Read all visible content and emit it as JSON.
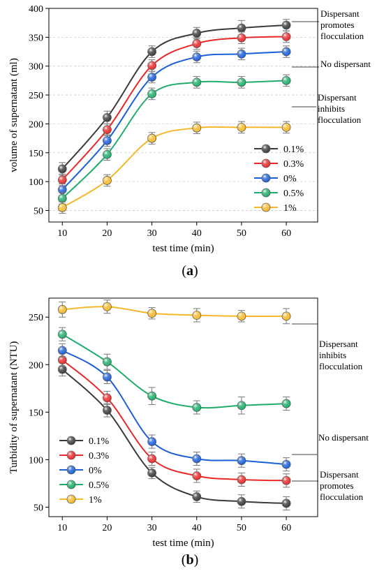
{
  "chart_data": [
    {
      "type": "line",
      "panel_label": "(a)",
      "xlabel": "test time (min)",
      "ylabel": "volume of supernatant (ml)",
      "x": [
        10,
        20,
        30,
        40,
        50,
        60
      ],
      "xlim": [
        7,
        67
      ],
      "ylim": [
        30,
        400
      ],
      "xticks": [
        10,
        20,
        30,
        40,
        50,
        60
      ],
      "yticks": [
        50,
        100,
        150,
        200,
        250,
        300,
        350,
        400
      ],
      "grid": "dashed horizontal",
      "legend_position": "lower-right",
      "series": [
        {
          "name": "0.1%",
          "color": "#3a3a3a",
          "values": [
            122,
            211,
            325,
            357,
            366,
            371
          ],
          "errors": [
            11,
            11,
            10,
            10,
            13,
            10
          ]
        },
        {
          "name": "0.3%",
          "color": "#e8292a",
          "values": [
            103,
            190,
            301,
            339,
            349,
            351
          ],
          "errors": [
            10,
            10,
            10,
            10,
            10,
            10
          ]
        },
        {
          "name": "0%",
          "color": "#1c5fd6",
          "values": [
            86,
            171,
            281,
            316,
            321,
            325
          ],
          "errors": [
            10,
            10,
            10,
            10,
            10,
            10
          ]
        },
        {
          "name": "0.5%",
          "color": "#1fad6b",
          "values": [
            71,
            147,
            252,
            272,
            272,
            275
          ],
          "errors": [
            10,
            10,
            10,
            10,
            10,
            10
          ]
        },
        {
          "name": "1%",
          "color": "#f5b82a",
          "values": [
            55,
            102,
            175,
            193,
            194,
            194
          ],
          "errors": [
            10,
            10,
            10,
            10,
            10,
            10
          ]
        }
      ],
      "annotations": [
        {
          "lines": [
            "Dispersant",
            "promotes",
            "flocculation"
          ]
        },
        {
          "lines": [
            "No dispersant"
          ]
        },
        {
          "lines": [
            "Dispersant",
            "inhibits",
            "flocculation"
          ]
        }
      ]
    },
    {
      "type": "line",
      "panel_label": "(b)",
      "xlabel": "test time (min)",
      "ylabel": "Turbidity of supernatant (NTU)",
      "x": [
        10,
        20,
        30,
        40,
        50,
        60
      ],
      "xlim": [
        7,
        67
      ],
      "ylim": [
        40,
        270
      ],
      "xticks": [
        10,
        20,
        30,
        40,
        50,
        60
      ],
      "yticks": [
        50,
        100,
        150,
        200,
        250
      ],
      "grid": "none",
      "legend_position": "lower-left",
      "series": [
        {
          "name": "0.1%",
          "color": "#3a3a3a",
          "values": [
            195,
            152,
            86,
            61,
            56,
            54
          ],
          "errors": [
            7,
            7,
            6,
            6,
            7,
            7
          ]
        },
        {
          "name": "0.3%",
          "color": "#e8292a",
          "values": [
            205,
            165,
            101,
            83,
            79,
            78
          ],
          "errors": [
            7,
            7,
            7,
            7,
            7,
            7
          ]
        },
        {
          "name": "0%",
          "color": "#1c5fd6",
          "values": [
            215,
            187,
            119,
            101,
            99,
            95
          ],
          "errors": [
            7,
            7,
            7,
            7,
            7,
            7
          ]
        },
        {
          "name": "0.5%",
          "color": "#1fad6b",
          "values": [
            232,
            203,
            167,
            155,
            157,
            159
          ],
          "errors": [
            7,
            8,
            9,
            7,
            9,
            7
          ]
        },
        {
          "name": "1%",
          "color": "#f5b82a",
          "values": [
            258,
            261,
            254,
            252,
            251,
            251
          ],
          "errors": [
            8,
            7,
            6,
            7,
            6,
            8
          ]
        }
      ],
      "annotations": [
        {
          "lines": [
            "Dispersant",
            "inhibits",
            "flocculation"
          ]
        },
        {
          "lines": [
            "No dispersant"
          ]
        },
        {
          "lines": [
            "Dispersant",
            "promotes",
            "flocculation"
          ]
        }
      ]
    }
  ]
}
